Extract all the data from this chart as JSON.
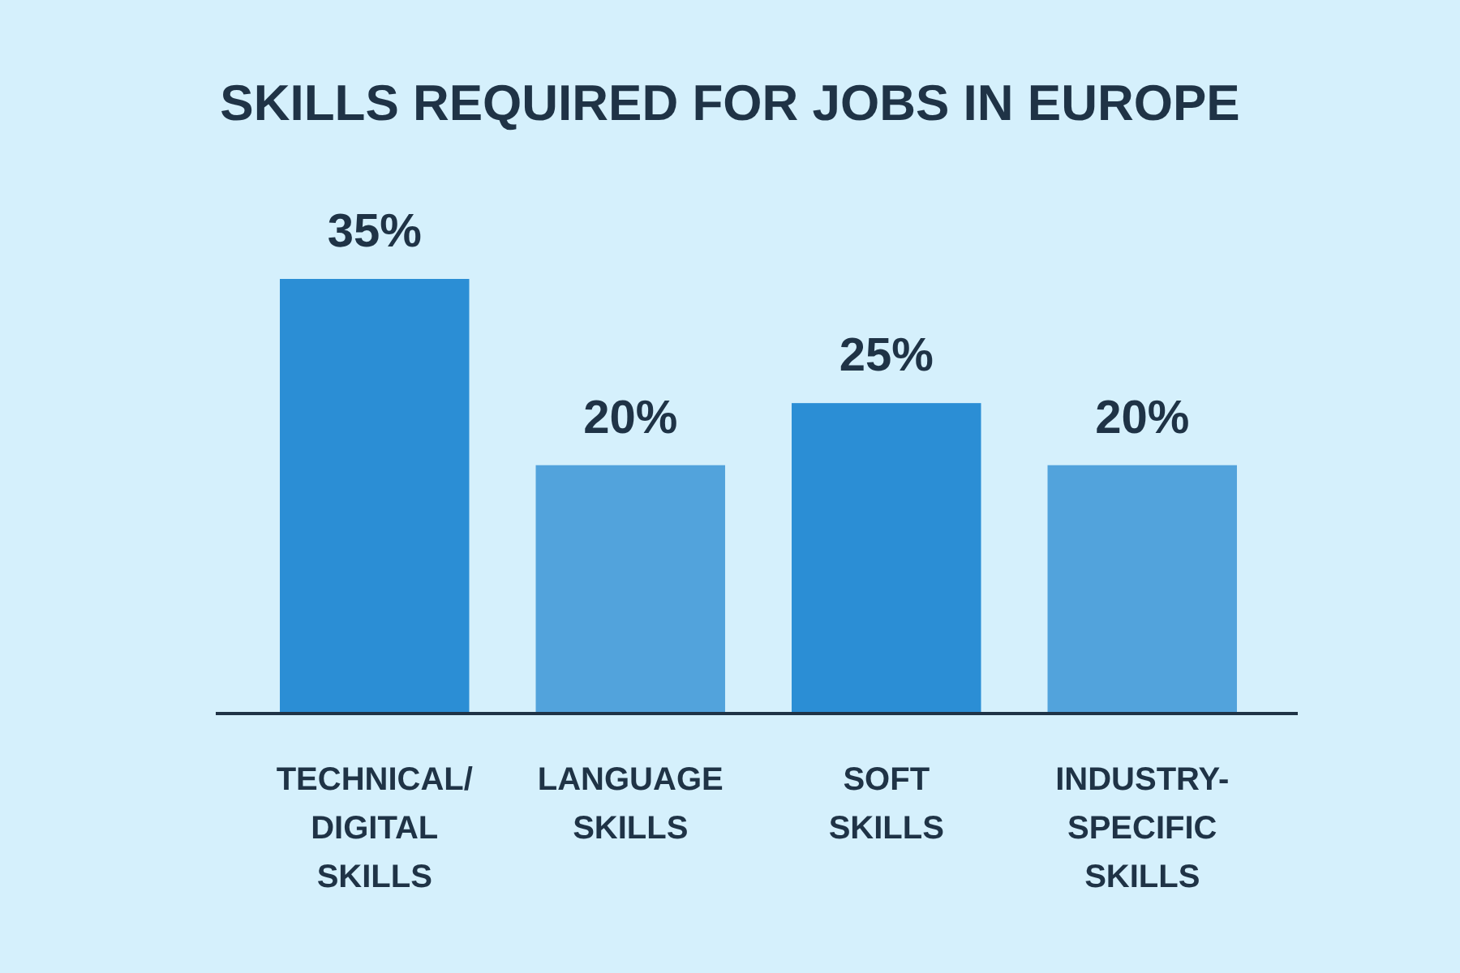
{
  "chart_data": {
    "type": "bar",
    "title": "SKILLS REQUIRED FOR JOBS IN EUROPE",
    "categories": [
      "TECHNICAL/\nDIGITAL\nSKILLS",
      "LANGUAGE\nSKILLS",
      "SOFT\nSKILLS",
      "INDUSTRY-\nSPECIFIC\nSKILLS"
    ],
    "values": [
      35,
      20,
      25,
      20
    ],
    "colors": [
      "#2b8ed5",
      "#52a3dc",
      "#2b8ed5",
      "#52a3dc"
    ],
    "value_labels": [
      "35%",
      "20%",
      "25%",
      "20%"
    ]
  }
}
